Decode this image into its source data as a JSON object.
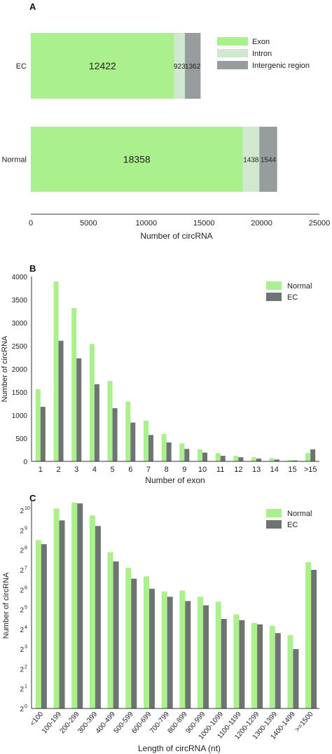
{
  "colors": {
    "normal": "#aaf08c",
    "ec": "#6e7373",
    "exon": "#aaf08c",
    "intron": "#cfe8cf",
    "intergenic": "#979d9d",
    "axis": "#333333"
  },
  "chart_data": [
    {
      "panel": "A",
      "type": "bar",
      "orientation": "horizontal",
      "stacked": true,
      "categories": [
        "EC",
        "Normal"
      ],
      "series": [
        {
          "name": "Exon",
          "values": [
            12422,
            18358
          ],
          "color": "#aaf08c"
        },
        {
          "name": "Intron",
          "values": [
            923,
            1438
          ],
          "color": "#cfe8cf"
        },
        {
          "name": "Intergenic region",
          "values": [
            1362,
            1544
          ],
          "color": "#979d9d"
        }
      ],
      "xlabel": "Number of circRNA",
      "ylabel": "",
      "xlim": [
        0,
        25000
      ],
      "xticks": [
        "0",
        "5000",
        "10000",
        "15000",
        "20000",
        "25000"
      ],
      "legend": "right"
    },
    {
      "panel": "B",
      "type": "bar",
      "categories": [
        "1",
        "2",
        "3",
        "4",
        "5",
        "6",
        "7",
        "8",
        "9",
        "10",
        "11",
        "12",
        "13",
        "14",
        "15",
        ">15"
      ],
      "series": [
        {
          "name": "Normal",
          "values": [
            1560,
            3890,
            3320,
            2540,
            1740,
            1290,
            880,
            590,
            390,
            260,
            180,
            120,
            90,
            70,
            30,
            180
          ],
          "color": "#aaf08c"
        },
        {
          "name": "EC",
          "values": [
            1180,
            2610,
            2230,
            1670,
            1150,
            840,
            570,
            410,
            270,
            190,
            120,
            90,
            60,
            40,
            20,
            260
          ],
          "color": "#6e7373"
        }
      ],
      "xlabel": "Number of exon",
      "ylabel": "Number of circRNA",
      "ylim": [
        0,
        4000
      ],
      "yticks": [
        "0",
        "500",
        "1000",
        "1500",
        "2000",
        "2500",
        "3000",
        "3500",
        "4000"
      ],
      "legend": "top-right"
    },
    {
      "panel": "C",
      "type": "bar",
      "yscale": "log2",
      "categories": [
        "<100",
        "100-199",
        "200-299",
        "300-399",
        "400-499",
        "500-599",
        "600-699",
        "700-799",
        "800-899",
        "900-999",
        "1000-1099",
        "1100-1199",
        "1200-1299",
        "1300-1399",
        "1400-1499",
        ">=1500"
      ],
      "series": [
        {
          "name": "Normal",
          "values": [
            362,
            1097,
            1351,
            861,
            238,
            137,
            102,
            60,
            62,
            50,
            42,
            27,
            20,
            18,
            13,
            168
          ],
          "color": "#aaf08c"
        },
        {
          "name": "EC",
          "values": [
            315,
            724,
            1311,
            595,
            172,
            94,
            66,
            50,
            43,
            37,
            23,
            22,
            19,
            14,
            8,
            128
          ],
          "color": "#6e7373"
        }
      ],
      "xlabel": "Length of circRNA (nt)",
      "ylabel": "Number of circRNA",
      "ylim": [
        1,
        1448
      ],
      "yticks": [
        "2",
        "2",
        "2",
        "2",
        "2",
        "2",
        "2",
        "2",
        "2",
        "2",
        "2"
      ],
      "ytick_exponents": [
        "0",
        "1",
        "2",
        "3",
        "4",
        "5",
        "6",
        "7",
        "8",
        "9",
        "10"
      ],
      "legend": "top-right"
    }
  ],
  "labels": {
    "panel_a": "A",
    "panel_b": "B",
    "panel_c": "C"
  }
}
